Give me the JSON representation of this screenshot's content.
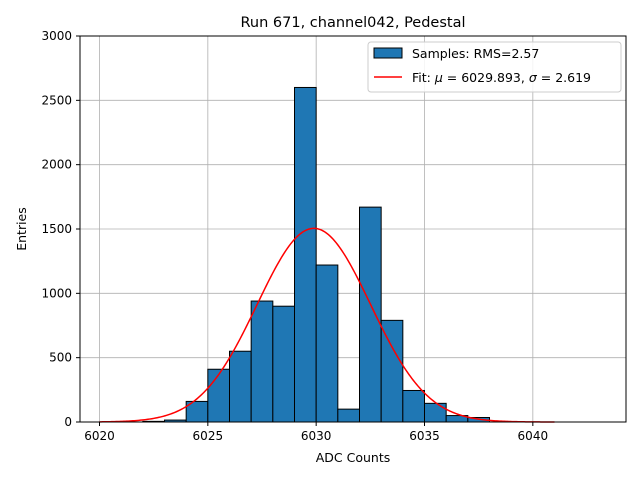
{
  "chart_data": {
    "type": "bar",
    "title": "Run 671, channel042, Pedestal",
    "xlabel": "ADC Counts",
    "ylabel": "Entries",
    "xlim": [
      6019.1,
      6044.3
    ],
    "ylim": [
      0,
      3000
    ],
    "xticks": [
      6020,
      6025,
      6030,
      6035,
      6040
    ],
    "yticks": [
      0,
      500,
      1000,
      1500,
      2000,
      2500,
      3000
    ],
    "grid": true,
    "legend_position": "top-right",
    "histogram": {
      "name": "Samples: RMS=2.57",
      "color": "#1f77b4",
      "bin_edges": [
        6022,
        6023,
        6024,
        6025,
        6026,
        6027,
        6028,
        6029,
        6030,
        6031,
        6032,
        6033,
        6034,
        6035,
        6036,
        6037,
        6038
      ],
      "counts": [
        5,
        15,
        160,
        410,
        550,
        940,
        900,
        2600,
        1220,
        100,
        1670,
        790,
        245,
        145,
        50,
        35
      ]
    },
    "fit": {
      "name_prefix": "Fit: ",
      "mu_symbol": "μ",
      "sigma_symbol": "σ",
      "mu_text": "6029.893",
      "sigma_text": "2.619",
      "mu": 6029.893,
      "sigma": 2.619,
      "amplitude": 1505,
      "x_range": [
        6020,
        6041
      ],
      "color": "#ff0000"
    }
  }
}
